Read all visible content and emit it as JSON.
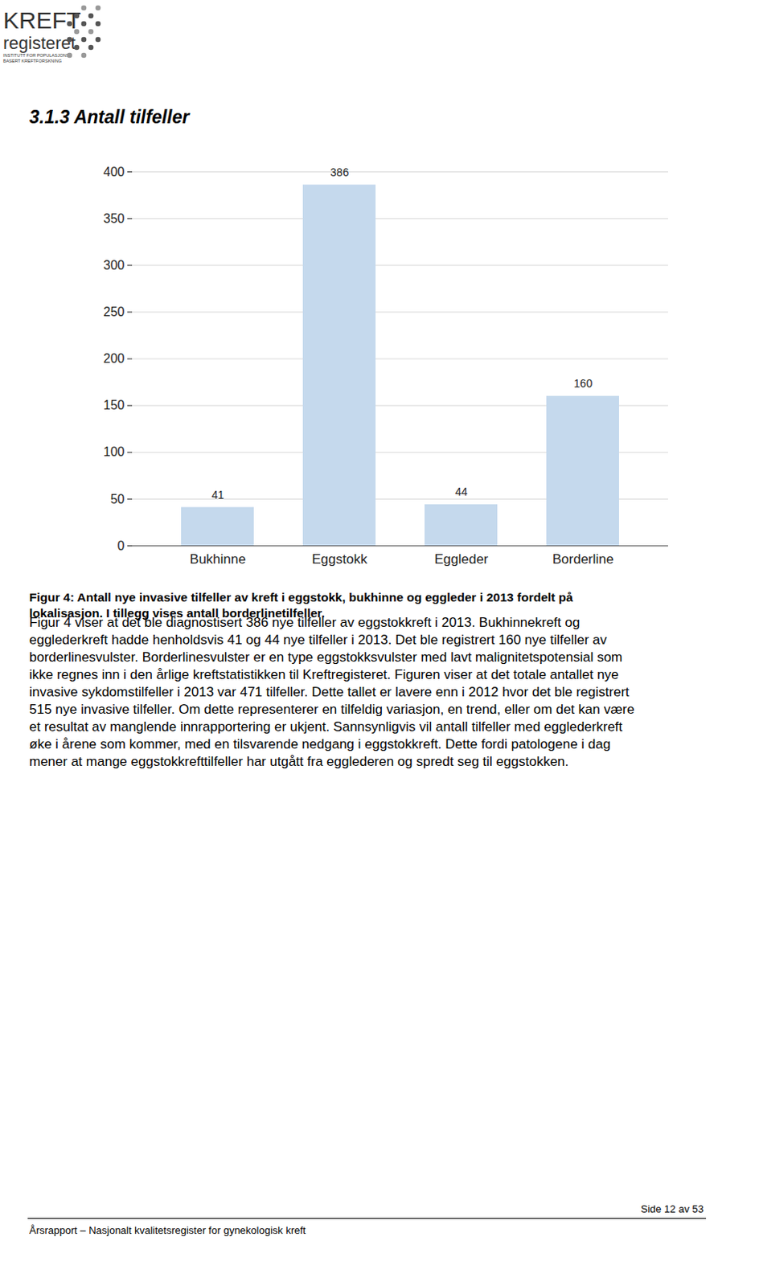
{
  "logo": {
    "line1": "KREFT",
    "line2": "registeret",
    "sub1": "INSTITUTT FOR POPULASJONS-",
    "sub2": "BASERT KREFTFORSKNING"
  },
  "heading": "3.1.3 Antall tilfeller",
  "chart_data": {
    "type": "bar",
    "categories": [
      "Bukhinne",
      "Eggstokk",
      "Eggleder",
      "Borderline"
    ],
    "values": [
      41,
      386,
      44,
      160
    ],
    "color": "#c5d9ed",
    "ylim": [
      0,
      400
    ],
    "yticks": [
      0,
      50,
      100,
      150,
      200,
      250,
      300,
      350,
      400
    ],
    "grid": true,
    "data_labels": true
  },
  "caption": [
    "Figur 4: Antall nye invasive tilfeller av kreft i eggstokk, bukhinne og eggleder i 2013 fordelt på",
    "lokalisasjon. I tillegg vises antall borderlinetilfeller."
  ],
  "paragraph": [
    "Figur 4 viser at det ble diagnostisert 386 nye tilfeller av eggstokkreft i 2013. Bukhinnekreft og",
    "eggleder­kreft hadde henholdsvis 41 og 44 nye tilfeller i 2013. Det ble registrert 160 nye tilfeller av",
    "borderlinesvulster. Borderlinesvulster er en type eggstokksvulster med lavt malignitetspotensial som",
    "ikke regnes inn i den årlige kreftstatistikken til Kreftregisteret. Figuren viser at det totale antallet nye",
    "invasive sykdomstilfeller i 2013 var 471 tilfeller. Dette tallet er lavere enn i 2012 hvor det ble registrert",
    "515 nye invasive tilfeller. Om dette representerer en tilfeldig variasjon, en trend, eller om det kan være",
    "et resultat av manglende innrapportering er ukjent. Sannsynligvis vil antall tilfeller med egglederkreft",
    "øke i årene som kommer, med en tilsvarende nedgang i eggstokkreft. Dette fordi patologene i dag",
    "mener at mange eggstokkrefttilfeller har utgått fra egglederen og spredt seg til eggstokken."
  ],
  "footer": {
    "page": "Side 12 av 53",
    "text": "Årsrapport – Nasjonalt kvalitetsregister for gynekologisk kreft"
  }
}
